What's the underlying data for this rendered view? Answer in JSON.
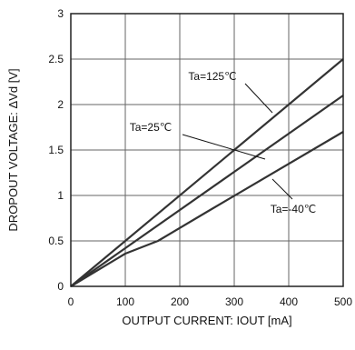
{
  "chart_data": {
    "type": "line",
    "title": "",
    "xlabel": "OUTPUT CURRENT: IOUT [mA]",
    "ylabel": "DROPOUT VOLTAGE: ΔVd [V]",
    "xlim": [
      0,
      500
    ],
    "ylim": [
      0,
      3
    ],
    "x_ticks": [
      0,
      100,
      200,
      300,
      400,
      500
    ],
    "y_ticks": [
      0,
      0.5,
      1,
      1.5,
      2,
      2.5,
      3
    ],
    "y_tick_labels": [
      "0",
      "0.5",
      "1",
      "1.5",
      "2",
      "2.5",
      "3"
    ],
    "grid": true,
    "legend": "none",
    "line_color": "#333333",
    "series": [
      {
        "name": "Ta=125℃",
        "x": [
          0,
          500
        ],
        "y": [
          0,
          2.5
        ]
      },
      {
        "name": "Ta=25℃",
        "x": [
          0,
          500
        ],
        "y": [
          0,
          2.1
        ]
      },
      {
        "name": "Ta=-40℃",
        "x": [
          0,
          100,
          160,
          250,
          500
        ],
        "y": [
          0,
          0.36,
          0.5,
          0.82,
          1.7
        ]
      }
    ]
  }
}
